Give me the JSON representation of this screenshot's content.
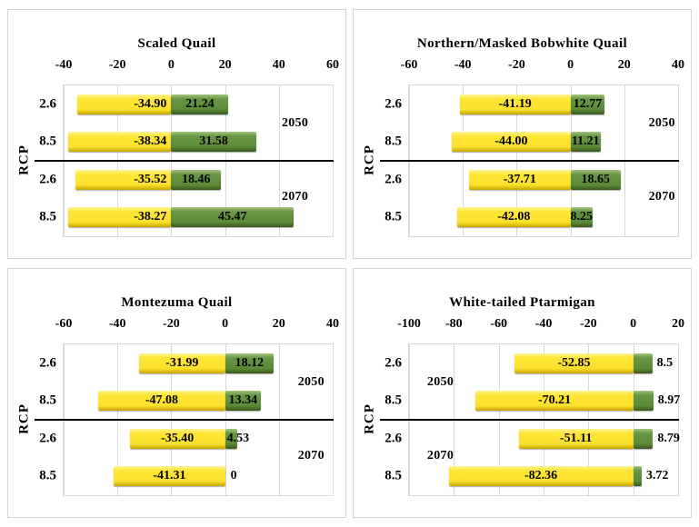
{
  "figure": {
    "background": "#ffffff",
    "panel_border_color": "#d6d6d6",
    "gridline_color": "#d9d9d9",
    "divider_color": "#000000",
    "text_color": "#000000",
    "bar_colors": {
      "yellow": "#ffe22e",
      "green": "#5f8c3c"
    }
  },
  "chart_data": [
    {
      "type": "bar",
      "title": "Scaled Quail",
      "ylabel": "RCP",
      "categories": [
        "2.6",
        "8.5",
        "2.6",
        "8.5"
      ],
      "xlim": [
        -40,
        60
      ],
      "xticks": [
        -40,
        -20,
        0,
        20,
        40,
        60
      ],
      "group_labels": [
        {
          "text": "2050",
          "x": 46
        },
        {
          "text": "2070",
          "x": 46
        }
      ],
      "series": [
        {
          "name": "yellow",
          "color": "yellow",
          "values": [
            -34.9,
            -38.34,
            -35.52,
            -38.27
          ],
          "labels": [
            "-34.90",
            "-38.34",
            "-35.52",
            "-38.27"
          ],
          "label_placement": [
            "end",
            "end",
            "end",
            "end"
          ]
        },
        {
          "name": "green",
          "color": "green",
          "values": [
            21.24,
            31.58,
            18.46,
            45.47
          ],
          "labels": [
            "21.24",
            "31.58",
            "18.46",
            "45.47"
          ],
          "label_placement": [
            "center",
            "center",
            "center",
            "center"
          ]
        }
      ]
    },
    {
      "type": "bar",
      "title": "Northern/Masked Bobwhite Quail",
      "ylabel": "RCP",
      "categories": [
        "2.6",
        "8.5",
        "2.6",
        "8.5"
      ],
      "xlim": [
        -60,
        40
      ],
      "xticks": [
        -60,
        -40,
        -20,
        0,
        20,
        40
      ],
      "group_labels": [
        {
          "text": "2050",
          "x": 34
        },
        {
          "text": "2070",
          "x": 34
        }
      ],
      "series": [
        {
          "name": "yellow",
          "color": "yellow",
          "values": [
            -41.19,
            -44.0,
            -37.71,
            -42.08
          ],
          "labels": [
            "-41.19",
            "-44.00",
            "-37.71",
            "-42.08"
          ],
          "label_placement": [
            "center",
            "center",
            "center",
            "center"
          ]
        },
        {
          "name": "green",
          "color": "green",
          "values": [
            12.77,
            11.21,
            18.65,
            8.25
          ],
          "labels": [
            "12.77",
            "11.21",
            "18.65",
            "8.25"
          ],
          "label_placement": [
            "center",
            "center",
            "center",
            "center"
          ]
        }
      ]
    },
    {
      "type": "bar",
      "title": "Montezuma Quail",
      "ylabel": "RCP",
      "categories": [
        "2.6",
        "8.5",
        "2.6",
        "8.5"
      ],
      "xlim": [
        -60,
        40
      ],
      "xticks": [
        -60,
        -40,
        -20,
        0,
        20,
        40
      ],
      "group_labels": [
        {
          "text": "2050",
          "x": 32
        },
        {
          "text": "2070",
          "x": 32
        }
      ],
      "series": [
        {
          "name": "yellow",
          "color": "yellow",
          "values": [
            -31.99,
            -47.08,
            -35.4,
            -41.31
          ],
          "labels": [
            "-31.99",
            "-47.08",
            "-35.40",
            "-41.31"
          ],
          "label_placement": [
            "center",
            "center",
            "center",
            "center"
          ]
        },
        {
          "name": "green",
          "color": "green",
          "values": [
            18.12,
            13.34,
            4.53,
            0
          ],
          "labels": [
            "18.12",
            "13.34",
            "4.53",
            "0"
          ],
          "label_placement": [
            "center",
            "center",
            "start",
            "zero"
          ]
        }
      ]
    },
    {
      "type": "bar",
      "title": "White-tailed Ptarmigan",
      "ylabel": "RCP",
      "categories": [
        "2.6",
        "8.5",
        "2.6",
        "8.5"
      ],
      "xlim": [
        -100,
        20
      ],
      "xticks": [
        -100,
        -80,
        -60,
        -40,
        -20,
        0,
        20
      ],
      "group_labels": [
        {
          "text": "2050",
          "x": -86
        },
        {
          "text": "2070",
          "x": -86
        }
      ],
      "series": [
        {
          "name": "yellow",
          "color": "yellow",
          "values": [
            -52.85,
            -70.21,
            -51.11,
            -82.36
          ],
          "labels": [
            "-52.85",
            "-70.21",
            "-51.11",
            "-82.36"
          ],
          "label_placement": [
            "center",
            "center",
            "center",
            "center"
          ]
        },
        {
          "name": "green",
          "color": "green",
          "values": [
            8.5,
            8.97,
            8.79,
            3.72
          ],
          "labels": [
            "8.5",
            "8.97",
            "8.79",
            "3.72"
          ],
          "label_placement": [
            "outside",
            "outside",
            "outside",
            "outside"
          ]
        }
      ]
    }
  ]
}
